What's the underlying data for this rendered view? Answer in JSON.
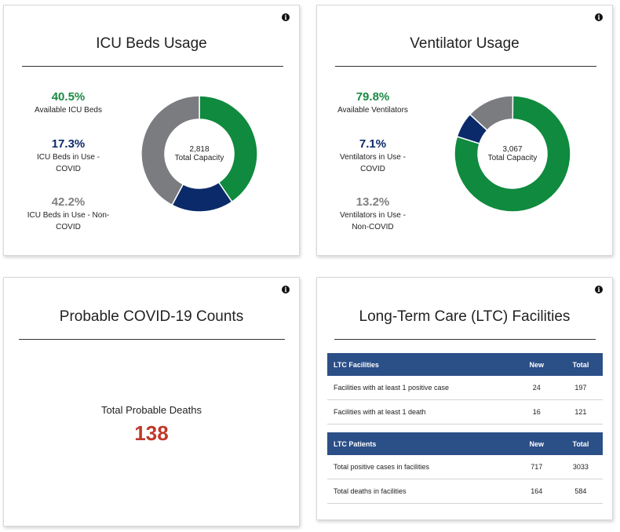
{
  "icu": {
    "title": "ICU Beds Usage",
    "stats": [
      {
        "value": "40.5%",
        "label": "Available ICU Beds",
        "color": "#1a8a44"
      },
      {
        "value": "17.3%",
        "label": "ICU Beds in Use - COVID",
        "color": "#0d2a6b"
      },
      {
        "value": "42.2%",
        "label": "ICU Beds in Use - Non-COVID",
        "color": "#808080"
      }
    ],
    "total_value": "2,818",
    "total_label": "Total Capacity",
    "segments": [
      {
        "name": "Available",
        "pct": 40.5,
        "color": "#0f8a3e"
      },
      {
        "name": "COVID",
        "pct": 17.3,
        "color": "#0b2a6a"
      },
      {
        "name": "Non-COVID",
        "pct": 42.2,
        "color": "#7b7c80"
      }
    ]
  },
  "ventilator": {
    "title": "Ventilator Usage",
    "stats": [
      {
        "value": "79.8%",
        "label": "Available Ventilators",
        "color": "#1a8a44"
      },
      {
        "value": "7.1%",
        "label": "Ventilators in Use - COVID",
        "color": "#0d2a6b"
      },
      {
        "value": "13.2%",
        "label": "Ventilators in Use - Non-COVID",
        "color": "#808080"
      }
    ],
    "total_value": "3,067",
    "total_label": "Total Capacity",
    "segments": [
      {
        "name": "Available",
        "pct": 79.8,
        "color": "#0f8a3e"
      },
      {
        "name": "COVID",
        "pct": 7.1,
        "color": "#0b2a6a"
      },
      {
        "name": "Non-COVID",
        "pct": 13.2,
        "color": "#7b7c80"
      }
    ]
  },
  "probable": {
    "title": "Probable COVID-19 Counts",
    "deaths_label": "Total Probable Deaths",
    "deaths_value": "138"
  },
  "ltc": {
    "title": "Long-Term Care (LTC) Facilities",
    "facilities": {
      "header": [
        "LTC Facilities",
        "New",
        "Total"
      ],
      "rows": [
        [
          "Facilities with at least 1 positive case",
          "24",
          "197"
        ],
        [
          "Facilities with at least 1 death",
          "16",
          "121"
        ]
      ]
    },
    "patients": {
      "header": [
        "LTC Patients",
        "New",
        "Total"
      ],
      "rows": [
        [
          "Total positive cases in facilities",
          "717",
          "3033"
        ],
        [
          "Total deaths in facilities",
          "164",
          "584"
        ]
      ]
    }
  },
  "icons": {
    "info": "info-icon",
    "info_glyph": "i"
  }
}
